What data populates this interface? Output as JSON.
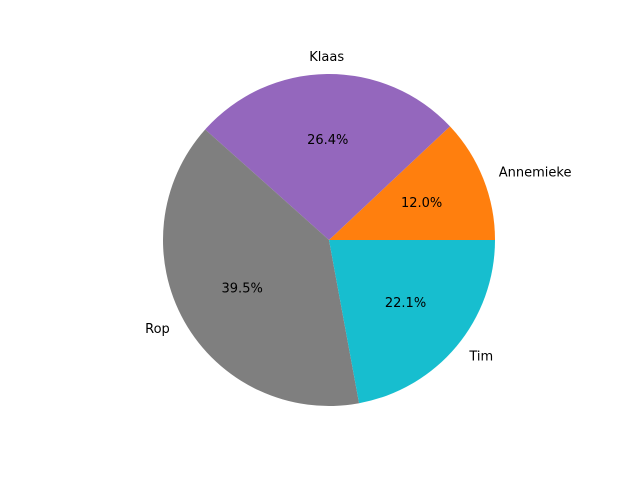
{
  "chart_data": {
    "type": "pie",
    "title": "",
    "start_angle_deg": 0,
    "direction": "counterclockwise",
    "slices": [
      {
        "label": "Annemieke",
        "value": 12.0,
        "pct_label": "12.0%",
        "color": "#ff7f0e"
      },
      {
        "label": "Klaas",
        "value": 26.4,
        "pct_label": "26.4%",
        "color": "#9467bd"
      },
      {
        "label": "Rop",
        "value": 39.5,
        "pct_label": "39.5%",
        "color": "#7f7f7f"
      },
      {
        "label": "Tim",
        "value": 22.1,
        "pct_label": "22.1%",
        "color": "#17becf"
      }
    ]
  }
}
